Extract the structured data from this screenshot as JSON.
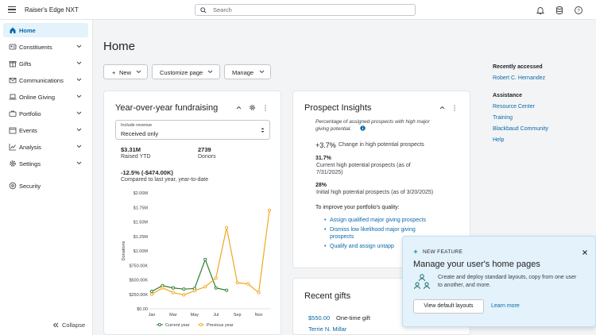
{
  "app": {
    "title": "Raiser's Edge NXT"
  },
  "search": {
    "placeholder": "Search"
  },
  "sidebar": {
    "items": [
      {
        "label": "Home",
        "icon": "home-icon",
        "active": true
      },
      {
        "label": "Constituents",
        "icon": "constituents-icon"
      },
      {
        "label": "Gifts",
        "icon": "gift-icon"
      },
      {
        "label": "Communications",
        "icon": "mail-icon"
      },
      {
        "label": "Online Giving",
        "icon": "laptop-icon"
      },
      {
        "label": "Portfolio",
        "icon": "portfolio-icon"
      },
      {
        "label": "Events",
        "icon": "events-icon"
      },
      {
        "label": "Analysis",
        "icon": "analysis-icon"
      },
      {
        "label": "Settings",
        "icon": "gear-icon"
      },
      {
        "label": "Security",
        "icon": "lock-icon"
      }
    ],
    "collapse_label": "Collapse"
  },
  "page": {
    "title": "Home",
    "buttons": {
      "new": "New",
      "customize": "Customize page",
      "manage": "Manage"
    }
  },
  "yoy": {
    "title": "Year-over-year fundraising",
    "select_label": "Include revenue",
    "select_value": "Received only",
    "raised_value": "$3.31M",
    "raised_label": "Raised YTD",
    "donors_value": "2739",
    "donors_label": "Donors",
    "change_value": "-12.5% (-$474.00K)",
    "change_label": "Compared to last year, year-to-date"
  },
  "chart_data": {
    "type": "line",
    "ylabel": "Donations",
    "yticks": [
      "$2.00M",
      "$1.75M",
      "$1.50M",
      "$1.25M",
      "$1.00M",
      "$750.00K",
      "$500.00K",
      "$250.00K",
      "$0.00"
    ],
    "ylim": [
      0,
      2000000
    ],
    "xticks": [
      "Jan",
      "Mar",
      "May",
      "Jul",
      "Sep",
      "Nov"
    ],
    "x": [
      "Jan",
      "Feb",
      "Mar",
      "Apr",
      "May",
      "Jun",
      "Jul",
      "Aug",
      "Sep",
      "Oct",
      "Nov",
      "Dec"
    ],
    "series": [
      {
        "name": "Current year",
        "color": "#2e7d32",
        "values": [
          300000,
          400000,
          360000,
          340000,
          350000,
          850000,
          360000,
          320000,
          null,
          null,
          null,
          null
        ]
      },
      {
        "name": "Previous year",
        "color": "#f5a623",
        "values": [
          250000,
          360000,
          280000,
          240000,
          310000,
          380000,
          530000,
          1400000,
          450000,
          430000,
          280000,
          1700000
        ]
      }
    ],
    "legend_position": "bottom",
    "grid": false
  },
  "prospect": {
    "title": "Prospect Insights",
    "desc_line1": "Percentage of assigned prospects with high major",
    "desc_line2": "giving potential.",
    "change_value": "+3.7%",
    "change_label": "Change in high potential prospects",
    "current_value": "31.7%",
    "current_label_1": "Current high potential prospects (as of",
    "current_label_2": "7/31/2025)",
    "initial_value": "28%",
    "initial_label": "Initial high potential prospects (as of 3/20/2025)",
    "improve_label": "To improve your portfolio's quality:",
    "links": [
      "Assign qualified major giving prospects",
      "Dismiss low likelihood major giving",
      "prospects",
      "Qualify and assign untapp"
    ]
  },
  "gifts": {
    "title": "Recent gifts",
    "amount": "$550.00",
    "type": "One-time gift",
    "donor": "Terrie N. Millar"
  },
  "right": {
    "recent_title": "Recently accessed",
    "recent_link": "Robert C. Hernandez",
    "assist_title": "Assistance",
    "links": [
      "Resource Center",
      "Training",
      "Blackbaud Community",
      "Help"
    ]
  },
  "toast": {
    "badge": "NEW FEATURE",
    "title": "Manage your user's home pages",
    "body_1": "Create and deploy standard layouts, copy from one user",
    "body_2": "to another, and more.",
    "button": "View default layouts",
    "link": "Learn more"
  },
  "colors": {
    "accent": "#0b69a8",
    "active_bg": "#e3f2fb",
    "current_year": "#2e7d32",
    "previous_year": "#f5a623"
  }
}
